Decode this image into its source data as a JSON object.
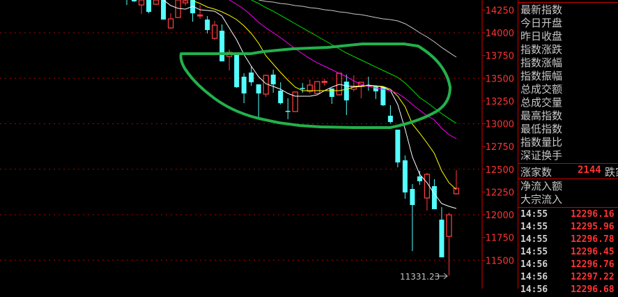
{
  "chart_data": {
    "type": "candlestick",
    "yaxis": {
      "ticks": [
        14250,
        14000,
        13750,
        13500,
        13250,
        13000,
        12750,
        12500,
        12250,
        12000,
        11750,
        11500
      ],
      "gridlines": [
        14000,
        13500,
        13000,
        12500,
        12000,
        11500
      ],
      "ylim": [
        11300,
        14360
      ]
    },
    "colors": {
      "up": "#ff3b3b",
      "down": "#54ffff",
      "axis": "#d40000",
      "grid": "#b00000"
    },
    "candles": [
      {
        "o": 14450,
        "h": 14470,
        "l": 14306,
        "c": 14380
      },
      {
        "o": 14400,
        "h": 14420,
        "l": 14340,
        "c": 14345
      },
      {
        "o": 14306,
        "h": 14385,
        "l": 14207,
        "c": 14360
      },
      {
        "o": 14370,
        "h": 14390,
        "l": 14214,
        "c": 14230
      },
      {
        "o": 14314,
        "h": 14380,
        "l": 14306,
        "c": 14360
      },
      {
        "o": 14383,
        "h": 14400,
        "l": 14145,
        "c": 14145
      },
      {
        "o": 14053,
        "h": 14214,
        "l": 14046,
        "c": 14153
      },
      {
        "o": 14168,
        "h": 14390,
        "l": 14168,
        "c": 14360
      },
      {
        "o": 14329,
        "h": 14375,
        "l": 14299,
        "c": 14352
      },
      {
        "o": 14383,
        "h": 14400,
        "l": 14122,
        "c": 14214
      },
      {
        "o": 14186,
        "h": 14306,
        "l": 14153,
        "c": 14196
      },
      {
        "o": 14145,
        "h": 14184,
        "l": 13992,
        "c": 14030
      },
      {
        "o": 13939,
        "h": 14130,
        "l": 13923,
        "c": 14084
      },
      {
        "o": 14023,
        "h": 14092,
        "l": 13686,
        "c": 13686
      },
      {
        "o": 13739,
        "h": 13816,
        "l": 13586,
        "c": 13785
      },
      {
        "o": 13762,
        "h": 13762,
        "l": 13394,
        "c": 13402
      },
      {
        "o": 13517,
        "h": 13555,
        "l": 13226,
        "c": 13333
      },
      {
        "o": 13563,
        "h": 13632,
        "l": 13417,
        "c": 13456
      },
      {
        "o": 13433,
        "h": 13433,
        "l": 13057,
        "c": 13333
      },
      {
        "o": 13326,
        "h": 13540,
        "l": 13295,
        "c": 13532
      },
      {
        "o": 13540,
        "h": 13594,
        "l": 13341,
        "c": 13433
      },
      {
        "o": 13364,
        "h": 13456,
        "l": 13211,
        "c": 13226
      },
      {
        "o": 13142,
        "h": 13280,
        "l": 13050,
        "c": 13134
      },
      {
        "o": 13134,
        "h": 13355,
        "l": 13134,
        "c": 13349
      },
      {
        "o": 13394,
        "h": 13448,
        "l": 13341,
        "c": 13388
      },
      {
        "o": 13356,
        "h": 13486,
        "l": 13333,
        "c": 13425
      },
      {
        "o": 13333,
        "h": 13470,
        "l": 13325,
        "c": 13463
      },
      {
        "o": 13458,
        "h": 13494,
        "l": 13417,
        "c": 13466
      },
      {
        "o": 13387,
        "h": 13390,
        "l": 13218,
        "c": 13295
      },
      {
        "o": 13318,
        "h": 13560,
        "l": 13310,
        "c": 13555
      },
      {
        "o": 13463,
        "h": 13540,
        "l": 13096,
        "c": 13257
      },
      {
        "o": 13379,
        "h": 13532,
        "l": 13356,
        "c": 13410
      },
      {
        "o": 13410,
        "h": 13460,
        "l": 13280,
        "c": 13456
      },
      {
        "o": 13425,
        "h": 13517,
        "l": 13364,
        "c": 13417
      },
      {
        "o": 13417,
        "h": 13420,
        "l": 13272,
        "c": 13356
      },
      {
        "o": 13402,
        "h": 13405,
        "l": 13195,
        "c": 13203
      },
      {
        "o": 13088,
        "h": 13203,
        "l": 13004,
        "c": 13019
      },
      {
        "o": 12935,
        "h": 12935,
        "l": 12521,
        "c": 12575
      },
      {
        "o": 12598,
        "h": 12651,
        "l": 12176,
        "c": 12245
      },
      {
        "o": 12283,
        "h": 12337,
        "l": 11601,
        "c": 12107
      },
      {
        "o": 12421,
        "h": 12483,
        "l": 12329,
        "c": 12368
      },
      {
        "o": 12184,
        "h": 12460,
        "l": 12046,
        "c": 12444
      },
      {
        "o": 12314,
        "h": 12391,
        "l": 12061,
        "c": 12061
      },
      {
        "o": 11946,
        "h": 12084,
        "l": 11532,
        "c": 11532
      },
      {
        "o": 11762,
        "h": 12023,
        "l": 11331.23,
        "c": 11999
      },
      {
        "o": 12230,
        "h": 12490,
        "l": 12222,
        "c": 12291
      }
    ],
    "low_label": "11331.23",
    "moving_averages": [
      {
        "color": "#ffffff",
        "values": [
          null,
          null,
          null,
          null,
          null,
          14360,
          14299,
          14268,
          14260,
          14291,
          14253,
          14245,
          14237,
          14184,
          14053,
          13923,
          13762,
          13632,
          13517,
          13440,
          13410,
          13379,
          13333,
          13303,
          13303,
          13303,
          13318,
          13364,
          13402,
          13433,
          13417,
          13410,
          13417,
          13425,
          13417,
          13402,
          13364,
          13211,
          12942,
          12636,
          12444,
          12352,
          12230,
          12123,
          12092,
          12069
        ]
      },
      {
        "color": "#ffff00",
        "values": [
          null,
          null,
          null,
          null,
          null,
          null,
          null,
          null,
          null,
          14352,
          14322,
          14283,
          14260,
          14230,
          14191,
          14145,
          14077,
          13992,
          13885,
          13747,
          13655,
          13563,
          13479,
          13402,
          13364,
          13364,
          13364,
          13364,
          13364,
          13364,
          13379,
          13402,
          13410,
          13417,
          13417,
          13410,
          13379,
          13303,
          13188,
          12996,
          12896,
          12789,
          12674,
          12483,
          12352,
          12276
        ]
      },
      {
        "color": "#ff00ff",
        "values": [
          null,
          null,
          null,
          null,
          null,
          null,
          null,
          null,
          null,
          null,
          null,
          null,
          null,
          null,
          14360,
          14314,
          14260,
          14191,
          14115,
          14053,
          14000,
          13946,
          13885,
          13824,
          13770,
          13716,
          13670,
          13632,
          13594,
          13555,
          13517,
          13471,
          13433,
          13410,
          13394,
          13379,
          13364,
          13333,
          13280,
          13211,
          13149,
          13088,
          13042,
          12950,
          12881,
          12835
        ]
      },
      {
        "color": "#00e000",
        "values": [
          null,
          null,
          null,
          null,
          null,
          null,
          null,
          null,
          null,
          null,
          null,
          null,
          null,
          null,
          null,
          null,
          null,
          14360,
          14322,
          14276,
          14237,
          14191,
          14145,
          14100,
          14053,
          14007,
          13962,
          13916,
          13870,
          13824,
          13778,
          13739,
          13701,
          13663,
          13624,
          13586,
          13548,
          13509,
          13448,
          13371,
          13287,
          13234,
          13172,
          13111,
          13057,
          13004
        ]
      },
      {
        "color": "#c8c8c8",
        "values": [
          null,
          null,
          null,
          null,
          null,
          null,
          null,
          null,
          null,
          null,
          null,
          null,
          null,
          null,
          null,
          null,
          null,
          null,
          14360,
          14345,
          14337,
          14322,
          14314,
          14299,
          14291,
          14276,
          14268,
          14253,
          14245,
          14230,
          14222,
          14207,
          14199,
          14184,
          14168,
          14153,
          14145,
          14130,
          14100,
          14053,
          14000,
          13954,
          13900,
          13839,
          13785,
          13732
        ]
      }
    ]
  },
  "panel": {
    "stats": [
      "最新指数",
      "今日开盘",
      "昨日收盘",
      "指数涨跌",
      "指数涨幅",
      "指数振幅",
      "总成交额",
      "总成交量",
      "最高指数",
      "最低指数",
      "指数量比",
      "深证换手"
    ],
    "rise_label": "涨家数",
    "rise_count": "2144",
    "fall_label": "跌家",
    "net_inflow_label": "净流入额",
    "block_inflow_label": "大宗流入",
    "ticks": [
      {
        "time": "14:55",
        "price": "12296.16"
      },
      {
        "time": "14:55",
        "price": "12295.96"
      },
      {
        "time": "14:55",
        "price": "12296.78"
      },
      {
        "time": "14:55",
        "price": "12296.45"
      },
      {
        "time": "14:56",
        "price": "12296.76"
      },
      {
        "time": "14:56",
        "price": "12297.22"
      },
      {
        "time": "14:56",
        "price": "12296.68"
      }
    ]
  }
}
